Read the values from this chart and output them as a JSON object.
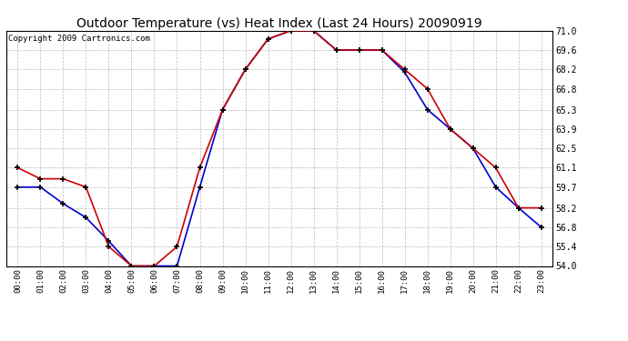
{
  "title": "Outdoor Temperature (vs) Heat Index (Last 24 Hours) 20090919",
  "copyright": "Copyright 2009 Cartronics.com",
  "x_labels": [
    "00:00",
    "01:00",
    "02:00",
    "03:00",
    "04:00",
    "05:00",
    "06:00",
    "07:00",
    "08:00",
    "09:00",
    "10:00",
    "11:00",
    "12:00",
    "13:00",
    "14:00",
    "15:00",
    "16:00",
    "17:00",
    "18:00",
    "19:00",
    "20:00",
    "21:00",
    "22:00",
    "23:00"
  ],
  "temp_red": [
    61.1,
    60.3,
    60.3,
    59.7,
    55.4,
    54.0,
    54.0,
    55.4,
    61.1,
    65.3,
    68.2,
    70.4,
    71.0,
    71.0,
    69.6,
    69.6,
    69.6,
    68.2,
    66.8,
    63.9,
    62.5,
    61.1,
    58.2,
    58.2
  ],
  "temp_blue": [
    59.7,
    59.7,
    58.5,
    57.5,
    55.8,
    54.0,
    54.0,
    54.0,
    59.7,
    65.3,
    68.2,
    70.4,
    71.0,
    71.0,
    69.6,
    69.6,
    69.6,
    68.0,
    65.3,
    63.9,
    62.5,
    59.7,
    58.2,
    56.8
  ],
  "ylim": [
    54.0,
    71.0
  ],
  "yticks": [
    54.0,
    55.4,
    56.8,
    58.2,
    59.7,
    61.1,
    62.5,
    63.9,
    65.3,
    66.8,
    68.2,
    69.6,
    71.0
  ],
  "bg_color": "#ffffff",
  "plot_bg_color": "#ffffff",
  "grid_color": "#bbbbbb",
  "red_color": "#cc0000",
  "blue_color": "#0000cc",
  "title_fontsize": 10,
  "copyright_fontsize": 6.5
}
